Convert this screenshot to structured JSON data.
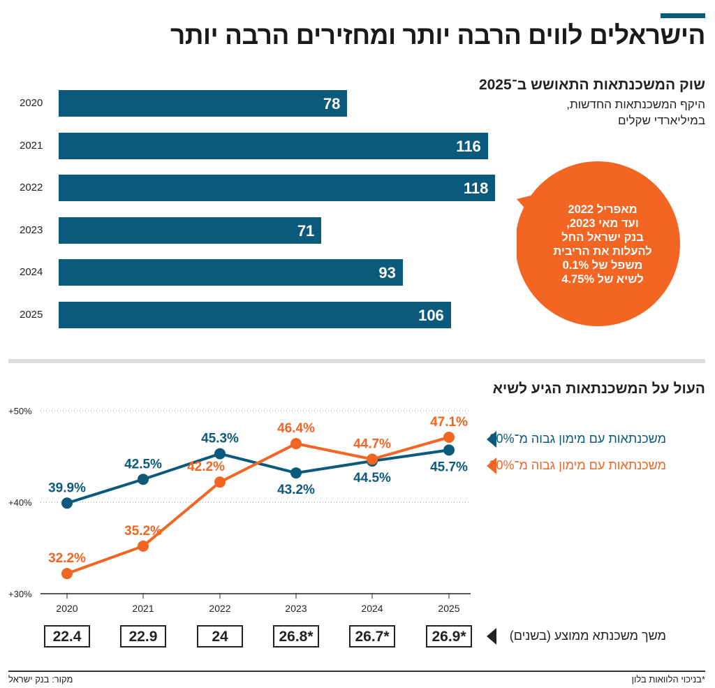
{
  "title": "הישראלים לווים הרבה יותר ומחזירים הרבה יותר",
  "bar_section": {
    "heading": "שוק המשכנתאות התאושש ב־2025",
    "subtitle_line1": "היקף המשכנתאות החדשות,",
    "subtitle_line2": "במיליארדי שקלים"
  },
  "callout": {
    "lines": [
      "מאפריל 2022",
      "ועד מאי 2023,",
      "בנק ישראל החל",
      "להעלות את הריבית",
      "משפל של 0.1%",
      "לשיא של 4.75%"
    ]
  },
  "line_section": {
    "heading": "העול על המשכנתאות הגיע לשיא"
  },
  "duration": {
    "label": "משך משכנתא ממוצע (בשנים)",
    "values": [
      "22.4",
      "22.9",
      "24",
      "26.8*",
      "26.7*",
      "26.9*"
    ]
  },
  "footer": {
    "source": "מקור: בנק ישראל",
    "note": "*בניכוי הלוואות בלון"
  },
  "colors": {
    "blue": "#0b5a7c",
    "orange": "#f26522"
  },
  "chart_data": [
    {
      "type": "bar",
      "orientation": "horizontal",
      "categories": [
        "2020",
        "2021",
        "2022",
        "2023",
        "2024",
        "2025"
      ],
      "values": [
        78,
        116,
        118,
        71,
        93,
        106
      ],
      "value_labels": [
        "78",
        "116",
        "118",
        "71",
        "93",
        "106"
      ],
      "xlim": [
        0,
        140
      ]
    },
    {
      "type": "line",
      "x": [
        "2020",
        "2021",
        "2022",
        "2023",
        "2024",
        "2025"
      ],
      "yticks": [
        "+30%",
        "+40%",
        "+50%"
      ],
      "ylim": [
        30,
        50
      ],
      "grid": "dotted at 40 and 50",
      "legend": "right",
      "series": [
        {
          "name": "משכנתאות עם מימון גבוה מ־60%",
          "color": "#0b5a7c",
          "values": [
            39.9,
            42.5,
            45.3,
            43.2,
            44.5,
            45.7
          ],
          "labels": [
            "39.9%",
            "42.5%",
            "45.3%",
            "43.2%",
            "44.5%",
            "45.7%"
          ]
        },
        {
          "name": "משכנתאות עם מימון גבוה מ־30%",
          "color": "#f26522",
          "values": [
            32.2,
            35.2,
            42.2,
            46.4,
            44.7,
            47.1
          ],
          "labels": [
            "32.2%",
            "35.2%",
            "42.2%",
            "46.4%",
            "44.7%",
            "47.1%"
          ]
        }
      ]
    }
  ]
}
